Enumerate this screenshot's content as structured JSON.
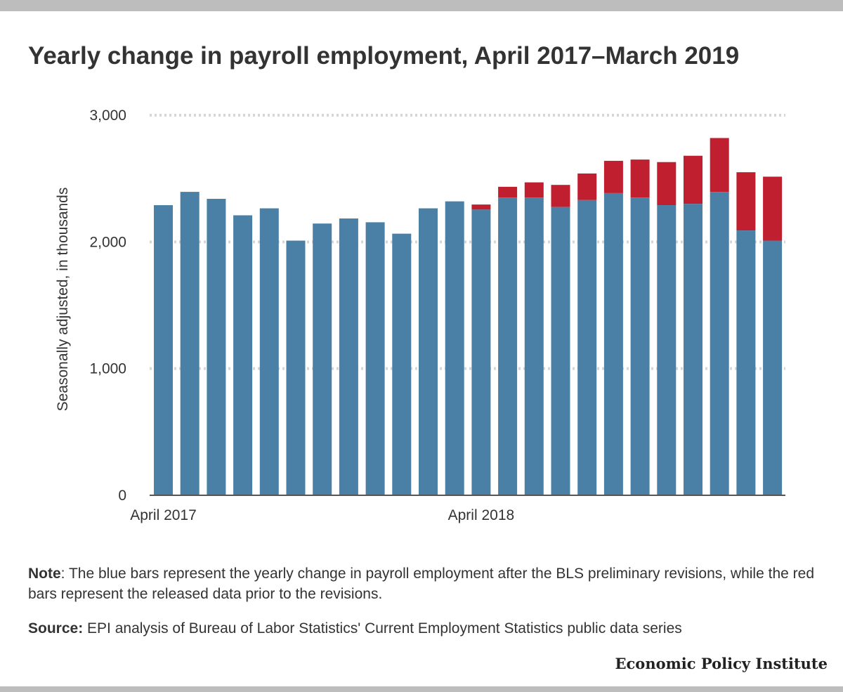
{
  "title": "Yearly change in payroll employment, April 2017–March 2019",
  "note": {
    "label": "Note",
    "text": ": The blue bars represent the yearly change in payroll employment after the BLS preliminary revisions, while the red bars represent the released data prior to the revisions."
  },
  "source": {
    "label": "Source:",
    "text": " EPI analysis of Bureau of Labor Statistics' Current Employment Statistics public data series"
  },
  "credit": "Economic Policy Institute",
  "colors": {
    "revised": "#4a80a6",
    "prior": "#c01f2f",
    "grid": "#d6d6d6",
    "axis": "#555555"
  },
  "chart_data": {
    "type": "bar",
    "stacked": true,
    "title": "Yearly change in payroll employment, April 2017–March 2019",
    "ylabel": "Seasonally adjusted, in thousands",
    "xlabel": "",
    "ylim": [
      0,
      3000
    ],
    "yticks": [
      0,
      1000,
      2000,
      3000
    ],
    "ytick_labels": [
      "0",
      "1,000",
      "2,000",
      "3,000"
    ],
    "x_tick_labels": [
      {
        "index": 0,
        "label": "April 2017"
      },
      {
        "index": 12,
        "label": "April 2018"
      }
    ],
    "grid": true,
    "legend": "none",
    "categories": [
      "2017-04",
      "2017-05",
      "2017-06",
      "2017-07",
      "2017-08",
      "2017-09",
      "2017-10",
      "2017-11",
      "2017-12",
      "2018-01",
      "2018-02",
      "2018-03",
      "2018-04",
      "2018-05",
      "2018-06",
      "2018-07",
      "2018-08",
      "2018-09",
      "2018-10",
      "2018-11",
      "2018-12",
      "2019-01",
      "2019-02",
      "2019-03"
    ],
    "revised": [
      2290,
      2395,
      2340,
      2210,
      2265,
      2010,
      2145,
      2185,
      2155,
      2065,
      2265,
      2320,
      2255,
      2350,
      2350,
      2275,
      2330,
      2385,
      2350,
      2290,
      2300,
      2395,
      2090,
      2010
    ],
    "prior_release": [
      2290,
      2395,
      2340,
      2210,
      2265,
      2010,
      2145,
      2185,
      2155,
      2065,
      2265,
      2320,
      2295,
      2435,
      2470,
      2450,
      2540,
      2640,
      2650,
      2630,
      2680,
      2820,
      2550,
      2515
    ]
  }
}
